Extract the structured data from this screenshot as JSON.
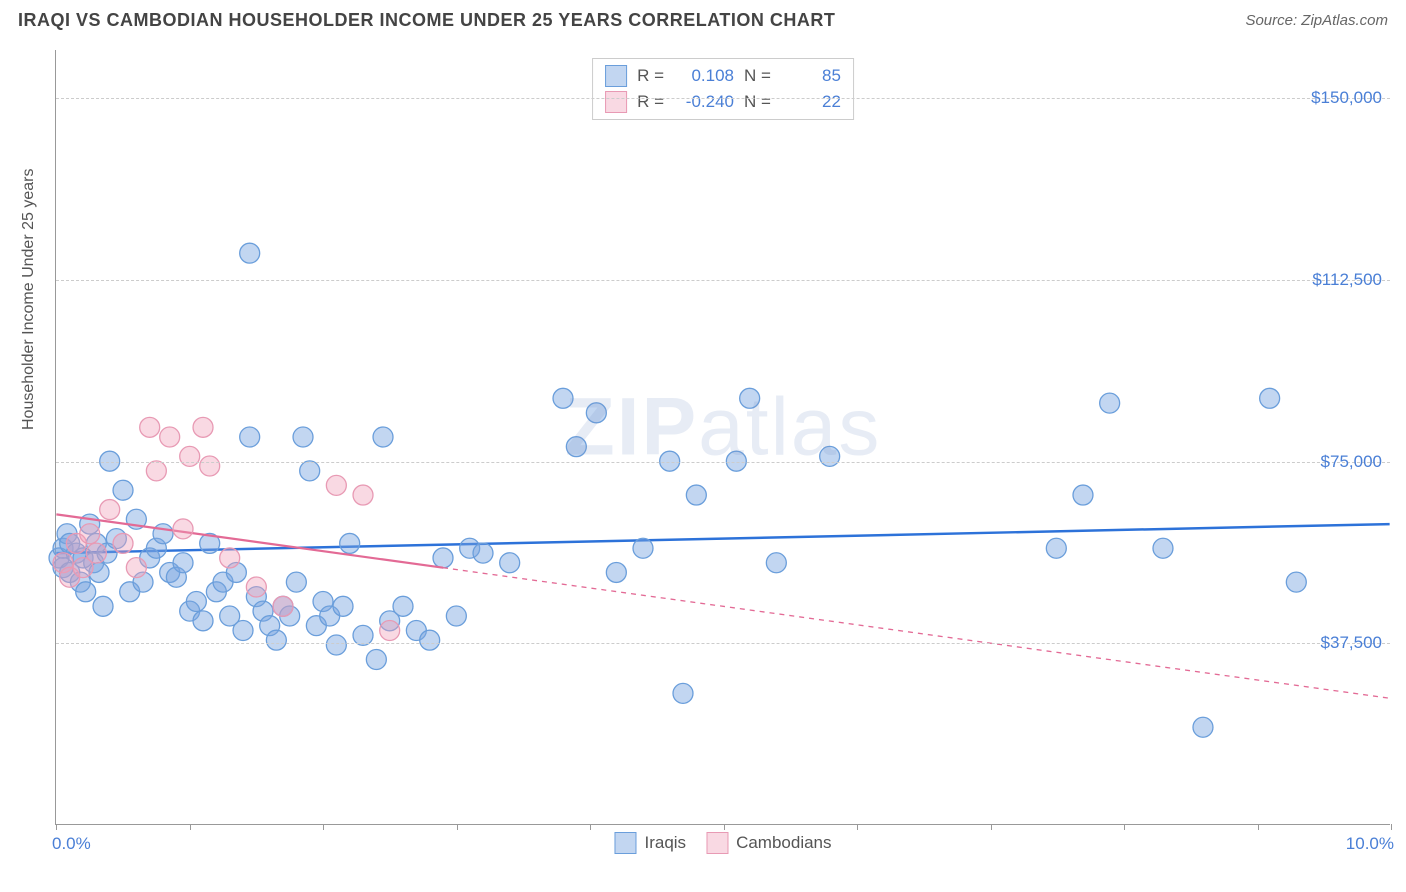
{
  "header": {
    "title": "IRAQI VS CAMBODIAN HOUSEHOLDER INCOME UNDER 25 YEARS CORRELATION CHART",
    "source": "Source: ZipAtlas.com"
  },
  "chart": {
    "type": "scatter",
    "ylabel": "Householder Income Under 25 years",
    "xlim": [
      0,
      10
    ],
    "ylim": [
      0,
      160000
    ],
    "x_tick_positions": [
      0,
      1,
      2,
      3,
      4,
      5,
      6,
      7,
      8,
      9,
      10
    ],
    "x_labels": {
      "start": "0.0%",
      "end": "10.0%"
    },
    "y_ticks": [
      {
        "value": 37500,
        "label": "$37,500"
      },
      {
        "value": 75000,
        "label": "$75,000"
      },
      {
        "value": 112500,
        "label": "$112,500"
      },
      {
        "value": 150000,
        "label": "$150,000"
      }
    ],
    "grid_color": "#cccccc",
    "background_color": "#ffffff",
    "axis_color": "#999999",
    "tick_label_color": "#4a7fd6",
    "marker_radius": 10,
    "marker_stroke_width": 1.3,
    "series": [
      {
        "name": "Iraqis",
        "fill_color": "rgba(120,165,225,0.45)",
        "stroke_color": "#6a9edb",
        "r_value": "0.108",
        "n_value": "85",
        "trend": {
          "slope": 600,
          "intercept": 56000,
          "color": "#2d72d9",
          "width": 2.5,
          "dash": "none",
          "solid_xmax": 10
        },
        "points": [
          [
            0.02,
            55000
          ],
          [
            0.05,
            53000
          ],
          [
            0.05,
            57000
          ],
          [
            0.08,
            60000
          ],
          [
            0.1,
            52000
          ],
          [
            0.1,
            58000
          ],
          [
            0.15,
            56000
          ],
          [
            0.18,
            50000
          ],
          [
            0.2,
            55000
          ],
          [
            0.22,
            48000
          ],
          [
            0.25,
            62000
          ],
          [
            0.28,
            54000
          ],
          [
            0.3,
            58000
          ],
          [
            0.32,
            52000
          ],
          [
            0.35,
            45000
          ],
          [
            0.38,
            56000
          ],
          [
            0.4,
            75000
          ],
          [
            0.45,
            59000
          ],
          [
            0.5,
            69000
          ],
          [
            0.55,
            48000
          ],
          [
            0.6,
            63000
          ],
          [
            0.65,
            50000
          ],
          [
            0.7,
            55000
          ],
          [
            0.75,
            57000
          ],
          [
            0.8,
            60000
          ],
          [
            0.85,
            52000
          ],
          [
            0.9,
            51000
          ],
          [
            0.95,
            54000
          ],
          [
            1.0,
            44000
          ],
          [
            1.05,
            46000
          ],
          [
            1.1,
            42000
          ],
          [
            1.15,
            58000
          ],
          [
            1.2,
            48000
          ],
          [
            1.25,
            50000
          ],
          [
            1.3,
            43000
          ],
          [
            1.35,
            52000
          ],
          [
            1.4,
            40000
          ],
          [
            1.45,
            80000
          ],
          [
            1.45,
            118000
          ],
          [
            1.5,
            47000
          ],
          [
            1.55,
            44000
          ],
          [
            1.6,
            41000
          ],
          [
            1.65,
            38000
          ],
          [
            1.7,
            45000
          ],
          [
            1.75,
            43000
          ],
          [
            1.8,
            50000
          ],
          [
            1.85,
            80000
          ],
          [
            1.9,
            73000
          ],
          [
            1.95,
            41000
          ],
          [
            2.0,
            46000
          ],
          [
            2.05,
            43000
          ],
          [
            2.1,
            37000
          ],
          [
            2.15,
            45000
          ],
          [
            2.2,
            58000
          ],
          [
            2.3,
            39000
          ],
          [
            2.4,
            34000
          ],
          [
            2.45,
            80000
          ],
          [
            2.5,
            42000
          ],
          [
            2.6,
            45000
          ],
          [
            2.7,
            40000
          ],
          [
            2.8,
            38000
          ],
          [
            2.9,
            55000
          ],
          [
            3.0,
            43000
          ],
          [
            3.1,
            57000
          ],
          [
            3.2,
            56000
          ],
          [
            3.4,
            54000
          ],
          [
            3.8,
            88000
          ],
          [
            3.9,
            78000
          ],
          [
            4.05,
            85000
          ],
          [
            4.2,
            52000
          ],
          [
            4.4,
            57000
          ],
          [
            4.6,
            75000
          ],
          [
            4.7,
            27000
          ],
          [
            4.8,
            68000
          ],
          [
            5.1,
            75000
          ],
          [
            5.2,
            88000
          ],
          [
            5.4,
            54000
          ],
          [
            5.8,
            76000
          ],
          [
            7.5,
            57000
          ],
          [
            7.7,
            68000
          ],
          [
            7.9,
            87000
          ],
          [
            8.3,
            57000
          ],
          [
            8.6,
            20000
          ],
          [
            9.1,
            88000
          ],
          [
            9.3,
            50000
          ]
        ]
      },
      {
        "name": "Cambodians",
        "fill_color": "rgba(240,160,185,0.4)",
        "stroke_color": "#e89ab4",
        "r_value": "-0.240",
        "n_value": "22",
        "trend": {
          "slope": -3800,
          "intercept": 64000,
          "color": "#e36a95",
          "width": 2.2,
          "dash": "5,5",
          "solid_xmax": 2.9
        },
        "points": [
          [
            0.05,
            54000
          ],
          [
            0.1,
            51000
          ],
          [
            0.15,
            58000
          ],
          [
            0.2,
            53000
          ],
          [
            0.25,
            60000
          ],
          [
            0.3,
            56000
          ],
          [
            0.4,
            65000
          ],
          [
            0.5,
            58000
          ],
          [
            0.6,
            53000
          ],
          [
            0.7,
            82000
          ],
          [
            0.75,
            73000
          ],
          [
            0.85,
            80000
          ],
          [
            0.95,
            61000
          ],
          [
            1.0,
            76000
          ],
          [
            1.1,
            82000
          ],
          [
            1.15,
            74000
          ],
          [
            1.3,
            55000
          ],
          [
            1.5,
            49000
          ],
          [
            1.7,
            45000
          ],
          [
            2.1,
            70000
          ],
          [
            2.3,
            68000
          ],
          [
            2.5,
            40000
          ]
        ]
      }
    ],
    "legend_top_labels": {
      "r": "R =",
      "n": "N ="
    },
    "legend_bottom_labels": [
      "Iraqis",
      "Cambodians"
    ],
    "watermark": {
      "part1": "ZIP",
      "part2": "atlas"
    }
  }
}
